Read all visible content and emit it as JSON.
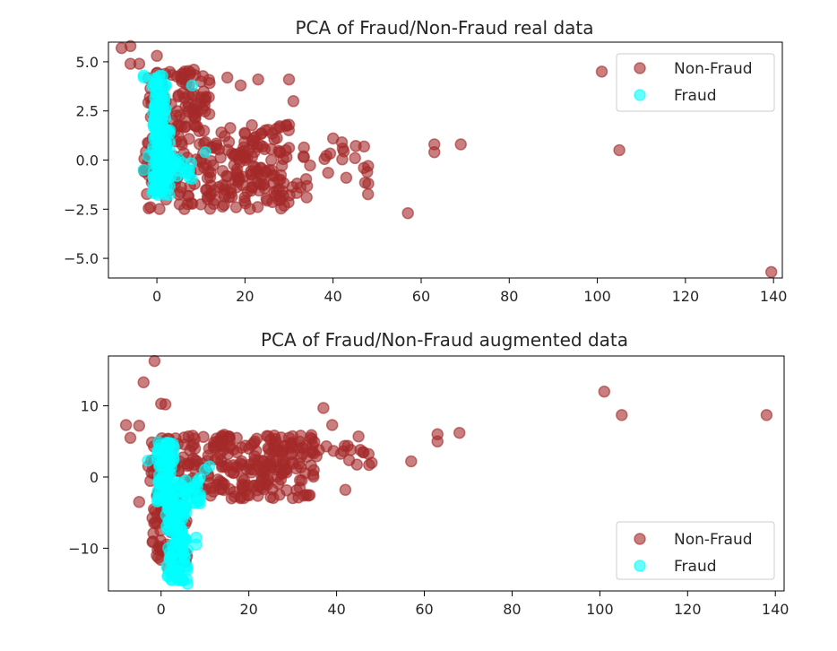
{
  "chart_data": [
    {
      "type": "scatter",
      "title": "PCA of Fraud/Non-Fraud real data",
      "xlabel": "",
      "ylabel": "",
      "xlim": [
        -11,
        142
      ],
      "ylim": [
        -6,
        6
      ],
      "xticks": [
        0,
        20,
        40,
        60,
        80,
        100,
        120,
        140
      ],
      "xtick_labels": [
        "0",
        "20",
        "40",
        "60",
        "80",
        "100",
        "120",
        "140"
      ],
      "yticks": [
        -5,
        -2.5,
        0,
        2.5,
        5
      ],
      "ytick_labels": [
        "−5.0",
        "−2.5",
        "0.0",
        "2.5",
        "5.0"
      ],
      "grid": false,
      "legend_position": "top-right",
      "series": [
        {
          "name": "Non-Fraud",
          "color": "#a52a2a",
          "clusters": [
            {
              "x": [
                -3,
                30
              ],
              "y": [
                -2.5,
                1.8
              ],
              "n": 260
            },
            {
              "x": [
                -2,
                12
              ],
              "y": [
                2,
                4.6
              ],
              "n": 80
            },
            {
              "x": [
                20,
                48
              ],
              "y": [
                -1.8,
                1.0
              ],
              "n": 40
            }
          ],
          "points": [
            [
              -8,
              5.7
            ],
            [
              -6,
              5.8
            ],
            [
              -6,
              4.9
            ],
            [
              -4,
              4.9
            ],
            [
              0,
              5.3
            ],
            [
              16,
              4.2
            ],
            [
              19,
              3.8
            ],
            [
              23,
              4.1
            ],
            [
              30,
              4.1
            ],
            [
              31,
              3.0
            ],
            [
              40,
              1.1
            ],
            [
              42,
              0.9
            ],
            [
              45,
              0.1
            ],
            [
              47,
              -0.4
            ],
            [
              48,
              -1.2
            ],
            [
              43,
              -0.9
            ],
            [
              34,
              -1.9
            ],
            [
              18,
              -2.4
            ],
            [
              57,
              -2.7
            ],
            [
              63,
              0.8
            ],
            [
              63,
              0.4
            ],
            [
              69,
              0.8
            ],
            [
              101,
              4.5
            ],
            [
              105,
              0.5
            ],
            [
              139.5,
              -5.7
            ]
          ]
        },
        {
          "name": "Fraud",
          "color": "#00ffff",
          "clusters": [
            {
              "x": [
                -1,
                3
              ],
              "y": [
                -1.8,
                1.6
              ],
              "n": 110
            },
            {
              "x": [
                -1,
                2
              ],
              "y": [
                1.6,
                4.3
              ],
              "n": 60
            },
            {
              "x": [
                2,
                8
              ],
              "y": [
                -1.0,
                0.3
              ],
              "n": 25
            }
          ],
          "points": [
            [
              -3,
              4.3
            ],
            [
              -3,
              4.2
            ],
            [
              8,
              3.8
            ],
            [
              2.5,
              1.5
            ],
            [
              11,
              0.4
            ],
            [
              -2,
              0.2
            ],
            [
              -3,
              -0.5
            ]
          ]
        }
      ]
    },
    {
      "type": "scatter",
      "title": "PCA of Fraud/Non-Fraud augmented data",
      "xlabel": "",
      "ylabel": "",
      "xlim": [
        -12,
        142
      ],
      "ylim": [
        -16,
        17
      ],
      "xticks": [
        0,
        20,
        40,
        60,
        80,
        100,
        120,
        140
      ],
      "xtick_labels": [
        "0",
        "20",
        "40",
        "60",
        "80",
        "100",
        "120",
        "140"
      ],
      "yticks": [
        -10,
        0,
        10
      ],
      "ytick_labels": [
        "−10",
        "0",
        "10"
      ],
      "grid": false,
      "legend_position": "bottom-right",
      "series": [
        {
          "name": "Non-Fraud",
          "color": "#a52a2a",
          "clusters": [
            {
              "x": [
                -3,
                35
              ],
              "y": [
                -3,
                6
              ],
              "n": 260
            },
            {
              "x": [
                -2,
                6
              ],
              "y": [
                -13,
                -2
              ],
              "n": 70
            },
            {
              "x": [
                20,
                48
              ],
              "y": [
                1,
                6
              ],
              "n": 40
            }
          ],
          "points": [
            [
              -7,
              5.5
            ],
            [
              -8,
              7.3
            ],
            [
              -5,
              7.2
            ],
            [
              -4,
              13.3
            ],
            [
              -1.5,
              16.3
            ],
            [
              0,
              10.3
            ],
            [
              1,
              10.2
            ],
            [
              -5,
              -3.5
            ],
            [
              37,
              9.7
            ],
            [
              39,
              7.3
            ],
            [
              45,
              5.7
            ],
            [
              46,
              3.5
            ],
            [
              48,
              2.0
            ],
            [
              42,
              -1.8
            ],
            [
              57,
              2.2
            ],
            [
              63,
              6.0
            ],
            [
              63,
              5.0
            ],
            [
              68,
              6.2
            ],
            [
              101,
              12.0
            ],
            [
              105,
              8.7
            ],
            [
              138,
              8.7
            ],
            [
              27,
              -2.5
            ]
          ]
        },
        {
          "name": "Fraud",
          "color": "#00ffff",
          "clusters": [
            {
              "x": [
                -1,
                3
              ],
              "y": [
                -4,
                5
              ],
              "n": 90
            },
            {
              "x": [
                1,
                6
              ],
              "y": [
                -14.5,
                -4
              ],
              "n": 110
            },
            {
              "x": [
                3,
                9
              ],
              "y": [
                -4,
                0
              ],
              "n": 30
            }
          ],
          "points": [
            [
              -3,
              2.3
            ],
            [
              10,
              1.0
            ],
            [
              11,
              1.5
            ],
            [
              8,
              -8.5
            ],
            [
              8,
              -9.5
            ],
            [
              6,
              -15.0
            ],
            [
              5,
              -14.5
            ]
          ]
        }
      ]
    }
  ]
}
